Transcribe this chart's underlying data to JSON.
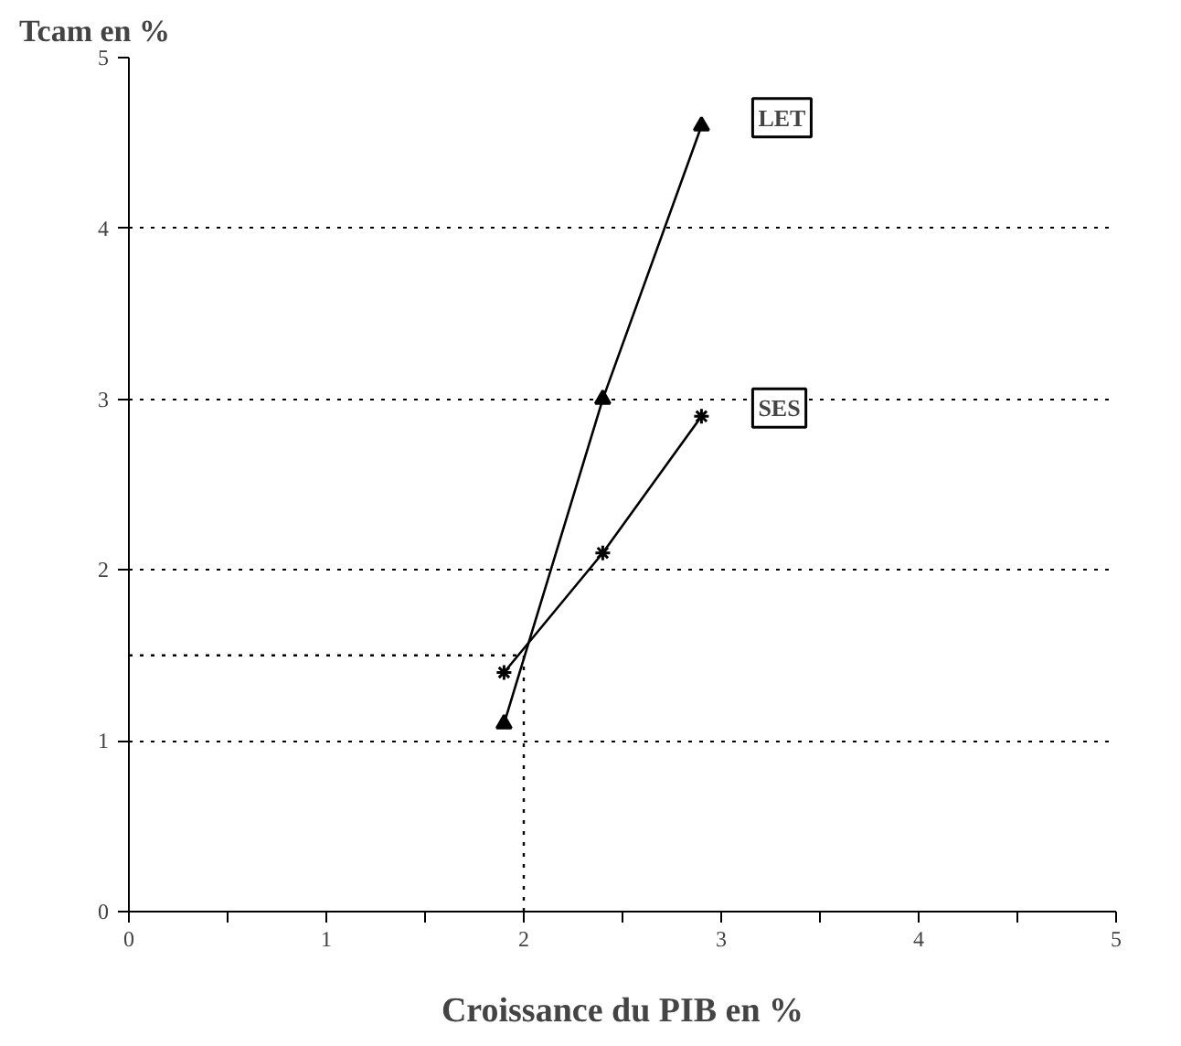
{
  "chart_data": {
    "type": "line",
    "ylabel": "Tcam en %",
    "xlabel": "Croissance du PIB en %",
    "series": [
      {
        "name": "LET",
        "color": "#000000",
        "marker": "triangle",
        "x": [
          1.9,
          2.4,
          2.9
        ],
        "values": [
          1.1,
          3.0,
          4.6
        ]
      },
      {
        "name": "SES",
        "color": "#000000",
        "marker": "cross",
        "x": [
          1.9,
          2.4,
          2.9
        ],
        "values": [
          1.4,
          2.1,
          2.9
        ]
      }
    ],
    "xlim": [
      0,
      5
    ],
    "ylim": [
      0,
      5
    ],
    "xticks": [
      0,
      {
        "value": 0.5,
        "label": null
      },
      1,
      {
        "value": 1.5,
        "label": null
      },
      2,
      {
        "value": 2.5,
        "label": null
      },
      3,
      {
        "value": 3.5,
        "label": null
      },
      4,
      {
        "value": 4.5,
        "label": null
      },
      5
    ],
    "yticks": [
      0,
      1,
      2,
      3,
      4,
      5
    ],
    "ref_lines": [
      {
        "axis": "x",
        "value": 2,
        "line_style": "dotted"
      },
      {
        "axis": "y",
        "value": 1.5,
        "line_style": "dotted"
      }
    ],
    "grid": "y",
    "line_style": "solid"
  }
}
